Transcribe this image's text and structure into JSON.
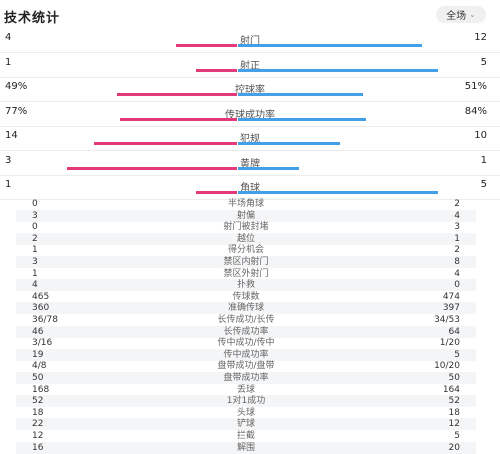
{
  "header": {
    "title": "技术统计",
    "scope_label": "全场",
    "chevron_icon": "chevron-down-icon"
  },
  "colors": {
    "home": "#e23a78",
    "away": "#44a0e6"
  },
  "main_stats": [
    {
      "label": "射门",
      "home": "4",
      "away": "12",
      "home_val": 4,
      "away_val": 12
    },
    {
      "label": "射正",
      "home": "1",
      "away": "5",
      "home_val": 1,
      "away_val": 5
    },
    {
      "label": "控球率",
      "home": "49%",
      "away": "51%",
      "home_val": 49,
      "away_val": 51
    },
    {
      "label": "传球成功率",
      "home": "77%",
      "away": "84%",
      "home_val": 77,
      "away_val": 84
    },
    {
      "label": "犯规",
      "home": "14",
      "away": "10",
      "home_val": 14,
      "away_val": 10
    },
    {
      "label": "黄牌",
      "home": "3",
      "away": "1",
      "home_val": 3,
      "away_val": 1
    },
    {
      "label": "角球",
      "home": "1",
      "away": "5",
      "home_val": 1,
      "away_val": 5
    }
  ],
  "detail_stats": [
    {
      "label": "半场角球",
      "home": "0",
      "away": "2"
    },
    {
      "label": "射偏",
      "home": "3",
      "away": "4"
    },
    {
      "label": "射门被封堵",
      "home": "0",
      "away": "3"
    },
    {
      "label": "越位",
      "home": "2",
      "away": "1"
    },
    {
      "label": "得分机会",
      "home": "1",
      "away": "2"
    },
    {
      "label": "禁区内射门",
      "home": "3",
      "away": "8"
    },
    {
      "label": "禁区外射门",
      "home": "1",
      "away": "4"
    },
    {
      "label": "扑救",
      "home": "4",
      "away": "0"
    },
    {
      "label": "传球数",
      "home": "465",
      "away": "474"
    },
    {
      "label": "准确传球",
      "home": "360",
      "away": "397"
    },
    {
      "label": "长传成功/长传",
      "home": "36/78",
      "away": "34/53"
    },
    {
      "label": "长传成功率",
      "home": "46",
      "away": "64"
    },
    {
      "label": "传中成功/传中",
      "home": "3/16",
      "away": "1/20"
    },
    {
      "label": "传中成功率",
      "home": "19",
      "away": "5"
    },
    {
      "label": "盘带成功/盘带",
      "home": "4/8",
      "away": "10/20"
    },
    {
      "label": "盘带成功率",
      "home": "50",
      "away": "50"
    },
    {
      "label": "丢球",
      "home": "168",
      "away": "164"
    },
    {
      "label": "1对1成功",
      "home": "52",
      "away": "52"
    },
    {
      "label": "头球",
      "home": "18",
      "away": "18"
    },
    {
      "label": "铲球",
      "home": "22",
      "away": "12"
    },
    {
      "label": "拦截",
      "home": "12",
      "away": "5"
    },
    {
      "label": "解围",
      "home": "16",
      "away": "20"
    }
  ]
}
